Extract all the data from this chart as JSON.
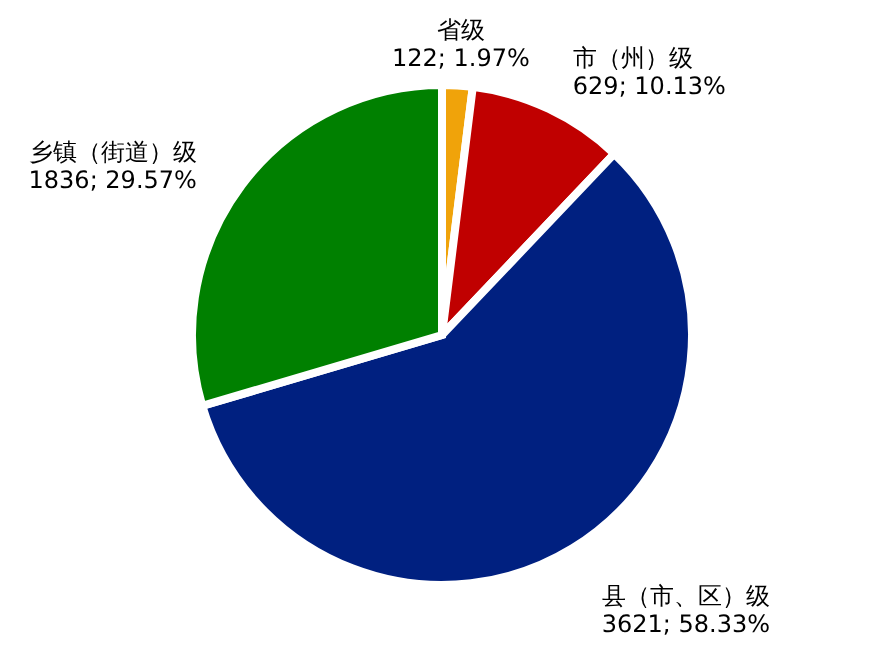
{
  "chart_data": {
    "type": "pie",
    "categories": [
      "省级",
      "市（州）级",
      "县（市、区）级",
      "乡镇（街道）级"
    ],
    "values": [
      122,
      629,
      3621,
      1836
    ],
    "colors": [
      "#f0a30a",
      "#c00000",
      "#002080",
      "#008000"
    ],
    "value_labels": [
      "122; 1.97%",
      "629; 10.13%",
      "3621; 58.33%",
      "1836; 29.57%"
    ]
  }
}
